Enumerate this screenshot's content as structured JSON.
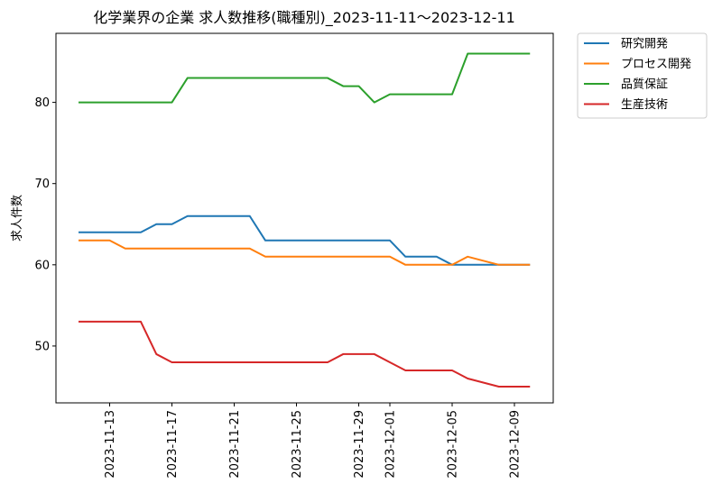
{
  "chart_data": {
    "type": "line",
    "title": "化学業界の企業 求人数推移(職種別)_2023-11-11～2023-12-11",
    "xlabel": "",
    "ylabel": "求人件数",
    "x": [
      "2023-11-11",
      "2023-11-12",
      "2023-11-13",
      "2023-11-14",
      "2023-11-15",
      "2023-11-16",
      "2023-11-17",
      "2023-11-18",
      "2023-11-19",
      "2023-11-20",
      "2023-11-21",
      "2023-11-22",
      "2023-11-23",
      "2023-11-24",
      "2023-11-25",
      "2023-11-26",
      "2023-11-27",
      "2023-11-28",
      "2023-11-29",
      "2023-11-30",
      "2023-12-01",
      "2023-12-02",
      "2023-12-03",
      "2023-12-04",
      "2023-12-05",
      "2023-12-06",
      "2023-12-07",
      "2023-12-08",
      "2023-12-09",
      "2023-12-10"
    ],
    "x_ticks": [
      "2023-11-13",
      "2023-11-17",
      "2023-11-21",
      "2023-11-25",
      "2023-11-29",
      "2023-12-01",
      "2023-12-05",
      "2023-12-09"
    ],
    "y_ticks": [
      50,
      60,
      70,
      80
    ],
    "ylim": [
      43,
      88.5
    ],
    "grid": false,
    "legend_position": "outside-top-right",
    "series": [
      {
        "name": "研究開発",
        "color": "#1f77b4",
        "values": [
          64,
          64,
          64,
          64,
          64,
          65,
          65,
          66,
          66,
          66,
          66,
          66,
          63,
          63,
          63,
          63,
          63,
          63,
          63,
          63,
          63,
          61,
          61,
          61,
          60,
          60,
          60,
          60,
          60,
          60
        ]
      },
      {
        "name": "プロセス開発",
        "color": "#ff7f0e",
        "values": [
          63,
          63,
          63,
          62,
          62,
          62,
          62,
          62,
          62,
          62,
          62,
          62,
          61,
          61,
          61,
          61,
          61,
          61,
          61,
          61,
          61,
          60,
          60,
          60,
          60,
          61,
          60.5,
          60,
          60,
          60
        ]
      },
      {
        "name": "品質保証",
        "color": "#2ca02c",
        "values": [
          80,
          80,
          80,
          80,
          80,
          80,
          80,
          83,
          83,
          83,
          83,
          83,
          83,
          83,
          83,
          83,
          83,
          82,
          82,
          80,
          81,
          81,
          81,
          81,
          81,
          86,
          86,
          86,
          86,
          86
        ]
      },
      {
        "name": "生産技術",
        "color": "#d62728",
        "values": [
          53,
          53,
          53,
          53,
          53,
          49,
          48,
          48,
          48,
          48,
          48,
          48,
          48,
          48,
          48,
          48,
          48,
          49,
          49,
          49,
          48,
          47,
          47,
          47,
          47,
          46,
          45.5,
          45,
          45,
          45
        ]
      }
    ]
  }
}
